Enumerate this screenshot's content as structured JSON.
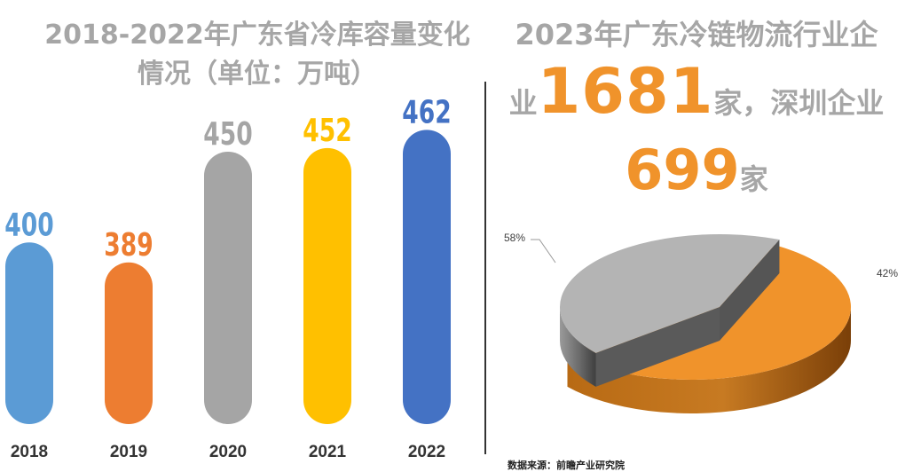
{
  "left_title": {
    "line1": "2018-2022年广东省冷库容量变化",
    "line2": "情况（单位：万吨）"
  },
  "right_title": {
    "line1": "2023年广东冷链物流行业企",
    "line2_prefix": "业",
    "total_enterprises": "1681",
    "line2_suffix": "家，深圳企业",
    "shenzhen_enterprises": "699",
    "line3_suffix": "家"
  },
  "source": "数据来源：前瞻产业研究院",
  "chart_data": [
    {
      "type": "bar",
      "title": "2018-2022年广东省冷库容量变化情况（单位：万吨）",
      "categories": [
        "2018",
        "2019",
        "2020",
        "2021",
        "2022"
      ],
      "values": [
        400,
        389,
        450,
        452,
        462
      ],
      "value_labels": [
        "400",
        "389",
        "450",
        "452",
        "462"
      ],
      "colors": [
        "#5b9bd5",
        "#ed7d31",
        "#a5a5a5",
        "#ffc000",
        "#4472c4"
      ],
      "ylabel": "万吨",
      "ylim": [
        300,
        470
      ],
      "grid": false
    },
    {
      "type": "pie",
      "title": "2023年广东冷链物流行业企业1681家，深圳企业699家",
      "slices": [
        {
          "label": "58%",
          "value": 58,
          "color": "#f0932b"
        },
        {
          "label": "42%",
          "value": 42,
          "color": "#b4b4b4"
        }
      ]
    }
  ]
}
